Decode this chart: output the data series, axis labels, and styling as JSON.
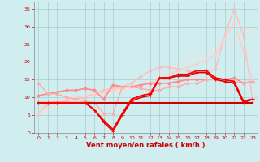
{
  "bg_color": "#d0eef0",
  "grid_color": "#aacccc",
  "xlabel": "Vent moyen/en rafales ( km/h )",
  "xlim": [
    -0.5,
    23.5
  ],
  "ylim": [
    0,
    37
  ],
  "yticks": [
    0,
    5,
    10,
    15,
    20,
    25,
    30,
    35
  ],
  "xticks": [
    0,
    1,
    2,
    3,
    4,
    5,
    6,
    7,
    8,
    9,
    10,
    11,
    12,
    13,
    14,
    15,
    16,
    17,
    18,
    19,
    20,
    21,
    22,
    23
  ],
  "series": [
    {
      "x": [
        0,
        1,
        2,
        3,
        4,
        5,
        6,
        7,
        8,
        9,
        10,
        11,
        12,
        13,
        14,
        15,
        16,
        17,
        18,
        19,
        20,
        21,
        22,
        23
      ],
      "y": [
        8.5,
        8.5,
        8.5,
        8.5,
        8.5,
        8.5,
        8.5,
        8.5,
        8.5,
        8.5,
        8.5,
        8.5,
        8.5,
        8.5,
        8.5,
        8.5,
        8.5,
        8.5,
        8.5,
        8.5,
        8.5,
        8.5,
        8.5,
        8.5
      ],
      "color": "#cc0000",
      "lw": 1.5,
      "marker": null,
      "ls": "-",
      "ms": 0,
      "zorder": 4
    },
    {
      "x": [
        0,
        1,
        2,
        3,
        4,
        5,
        6,
        7,
        8,
        9,
        10,
        11,
        12,
        13,
        14,
        15,
        16,
        17,
        18,
        19,
        20,
        21,
        22,
        23
      ],
      "y": [
        8.5,
        8.5,
        8.5,
        8.5,
        8.5,
        8.5,
        6.5,
        3.0,
        0.5,
        5.0,
        9.0,
        10.0,
        10.5,
        15.5,
        15.5,
        16.0,
        16.0,
        17.0,
        17.0,
        15.0,
        14.5,
        14.0,
        8.5,
        9.5
      ],
      "color": "#dd0000",
      "lw": 1.2,
      "marker": "+",
      "ls": "-",
      "ms": 3.5,
      "zorder": 5
    },
    {
      "x": [
        0,
        1,
        2,
        3,
        4,
        5,
        6,
        7,
        8,
        9,
        10,
        11,
        12,
        13,
        14,
        15,
        16,
        17,
        18,
        19,
        20,
        21,
        22,
        23
      ],
      "y": [
        8.5,
        8.5,
        8.5,
        8.5,
        8.5,
        8.5,
        6.5,
        3.5,
        1.0,
        5.5,
        9.5,
        10.5,
        11.0,
        15.5,
        15.5,
        16.5,
        16.5,
        17.5,
        17.5,
        15.5,
        15.0,
        14.5,
        9.0,
        9.5
      ],
      "color": "#ff0000",
      "lw": 1.2,
      "marker": "+",
      "ls": "-",
      "ms": 3.5,
      "zorder": 5
    },
    {
      "x": [
        0,
        1,
        2,
        3,
        4,
        5,
        6,
        7,
        8,
        9,
        10,
        11,
        12,
        13,
        14,
        15,
        16,
        17,
        18,
        19,
        20,
        21,
        22,
        23
      ],
      "y": [
        8.5,
        8.5,
        8.5,
        8.5,
        8.5,
        8.5,
        6.5,
        3.5,
        1.0,
        5.5,
        9.5,
        10.5,
        11.0,
        15.5,
        15.5,
        16.5,
        16.5,
        17.5,
        17.5,
        15.5,
        15.0,
        14.5,
        9.0,
        9.5
      ],
      "color": "#cc0000",
      "lw": 1.0,
      "marker": null,
      "ls": "--",
      "ms": 0,
      "zorder": 4
    },
    {
      "x": [
        0,
        1,
        2,
        3,
        4,
        5,
        6,
        7,
        8,
        9,
        10,
        11,
        12,
        13,
        14,
        15,
        16,
        17,
        18,
        19,
        20,
        21,
        22,
        23
      ],
      "y": [
        10.5,
        11.0,
        11.5,
        12.0,
        12.0,
        12.5,
        12.0,
        9.5,
        13.5,
        13.0,
        13.0,
        13.5,
        14.0,
        14.0,
        14.0,
        14.5,
        15.0,
        15.0,
        15.0,
        15.0,
        15.0,
        15.5,
        14.0,
        14.5
      ],
      "color": "#ff8888",
      "lw": 1.2,
      "marker": "D",
      "ls": "-",
      "ms": 2,
      "zorder": 3
    },
    {
      "x": [
        0,
        1,
        2,
        3,
        4,
        5,
        6,
        7,
        8,
        9,
        10,
        11,
        12,
        13,
        14,
        15,
        16,
        17,
        18,
        19,
        20,
        21,
        22,
        23
      ],
      "y": [
        14.0,
        11.0,
        11.0,
        10.0,
        9.5,
        9.0,
        8.5,
        5.5,
        5.5,
        13.0,
        13.0,
        12.5,
        12.0,
        12.0,
        13.0,
        13.0,
        14.0,
        14.0,
        15.0,
        15.0,
        15.0,
        14.5,
        14.0,
        14.5
      ],
      "color": "#ffaaaa",
      "lw": 1.0,
      "marker": "D",
      "ls": "-",
      "ms": 2,
      "zorder": 3
    },
    {
      "x": [
        0,
        1,
        2,
        3,
        4,
        5,
        6,
        7,
        8,
        9,
        10,
        11,
        12,
        13,
        14,
        15,
        16,
        17,
        18,
        19,
        20,
        21,
        22,
        23
      ],
      "y": [
        5.5,
        8.0,
        8.5,
        9.0,
        9.5,
        10.0,
        11.0,
        12.0,
        12.5,
        13.0,
        14.0,
        16.0,
        17.5,
        18.5,
        18.5,
        18.0,
        17.5,
        17.0,
        17.0,
        18.0,
        27.5,
        35.0,
        27.5,
        9.0
      ],
      "color": "#ffbbbb",
      "lw": 1.0,
      "marker": "*",
      "ls": "-",
      "ms": 3,
      "zorder": 2
    },
    {
      "x": [
        0,
        1,
        2,
        3,
        4,
        5,
        6,
        7,
        8,
        9,
        10,
        11,
        12,
        13,
        14,
        15,
        16,
        17,
        18,
        19,
        20,
        21,
        22,
        23
      ],
      "y": [
        5.5,
        8.5,
        9.0,
        9.5,
        10.0,
        10.5,
        11.0,
        11.5,
        12.0,
        12.5,
        13.0,
        13.5,
        14.0,
        15.0,
        16.5,
        17.5,
        18.5,
        19.5,
        20.5,
        22.0,
        27.0,
        31.0,
        23.0,
        14.5
      ],
      "color": "#ffcccc",
      "lw": 1.0,
      "marker": "D",
      "ls": "-",
      "ms": 2,
      "zorder": 2
    },
    {
      "x": [
        0,
        1,
        2,
        3,
        4,
        5,
        6,
        7,
        8,
        9,
        10,
        11,
        12,
        13,
        14,
        15,
        16,
        17,
        18,
        19,
        20,
        21,
        22,
        23
      ],
      "y": [
        5.5,
        6.5,
        7.5,
        8.5,
        9.5,
        10.0,
        10.5,
        11.0,
        11.5,
        12.0,
        12.5,
        13.5,
        15.0,
        17.0,
        18.0,
        19.0,
        20.5,
        21.5,
        22.5,
        23.5,
        24.5,
        25.5,
        27.5,
        30.0
      ],
      "color": "#ffdddd",
      "lw": 1.0,
      "marker": null,
      "ls": "-",
      "ms": 0,
      "zorder": 1
    }
  ]
}
